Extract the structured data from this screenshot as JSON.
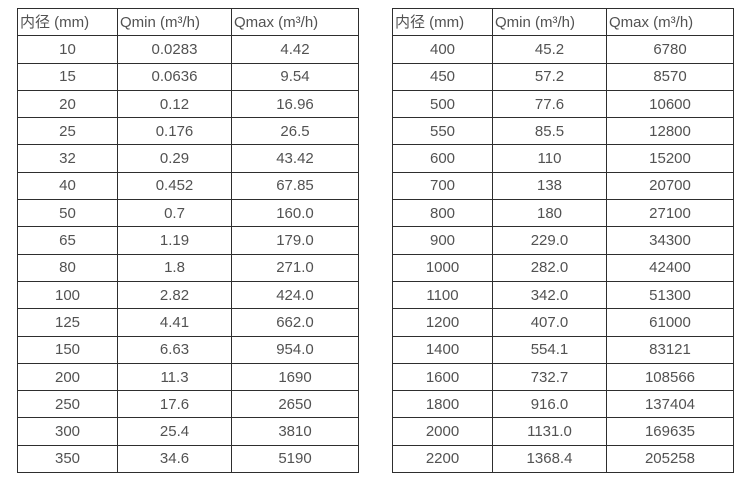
{
  "colors": {
    "background": "#ffffff",
    "border": "#2e2e2e",
    "text": "#525252"
  },
  "tables": [
    {
      "name": "flow-table-small-diameters",
      "headers": [
        "内径 (mm)",
        "Qmin (m³/h)",
        "Qmax (m³/h)"
      ],
      "rows": [
        [
          "10",
          "0.0283",
          "4.42"
        ],
        [
          "15",
          "0.0636",
          "9.54"
        ],
        [
          "20",
          "0.12",
          "16.96"
        ],
        [
          "25",
          "0.176",
          "26.5"
        ],
        [
          "32",
          "0.29",
          "43.42"
        ],
        [
          "40",
          "0.452",
          "67.85"
        ],
        [
          "50",
          "0.7",
          "160.0"
        ],
        [
          "65",
          "1.19",
          "179.0"
        ],
        [
          "80",
          "1.8",
          "271.0"
        ],
        [
          "100",
          "2.82",
          "424.0"
        ],
        [
          "125",
          "4.41",
          "662.0"
        ],
        [
          "150",
          "6.63",
          "954.0"
        ],
        [
          "200",
          "11.3",
          "1690"
        ],
        [
          "250",
          "17.6",
          "2650"
        ],
        [
          "300",
          "25.4",
          "3810"
        ],
        [
          "350",
          "34.6",
          "5190"
        ]
      ]
    },
    {
      "name": "flow-table-large-diameters",
      "headers": [
        "内径 (mm)",
        "Qmin (m³/h)",
        "Qmax (m³/h)"
      ],
      "rows": [
        [
          "400",
          "45.2",
          "6780"
        ],
        [
          "450",
          "57.2",
          "8570"
        ],
        [
          "500",
          "77.6",
          "10600"
        ],
        [
          "550",
          "85.5",
          "12800"
        ],
        [
          "600",
          "110",
          "15200"
        ],
        [
          "700",
          "138",
          "20700"
        ],
        [
          "800",
          "180",
          "27100"
        ],
        [
          "900",
          "229.0",
          "34300"
        ],
        [
          "1000",
          "282.0",
          "42400"
        ],
        [
          "1100",
          "342.0",
          "51300"
        ],
        [
          "1200",
          "407.0",
          "61000"
        ],
        [
          "1400",
          "554.1",
          "83121"
        ],
        [
          "1600",
          "732.7",
          "108566"
        ],
        [
          "1800",
          "916.0",
          "137404"
        ],
        [
          "2000",
          "1131.0",
          "169635"
        ],
        [
          "2200",
          "1368.4",
          "205258"
        ]
      ]
    }
  ]
}
